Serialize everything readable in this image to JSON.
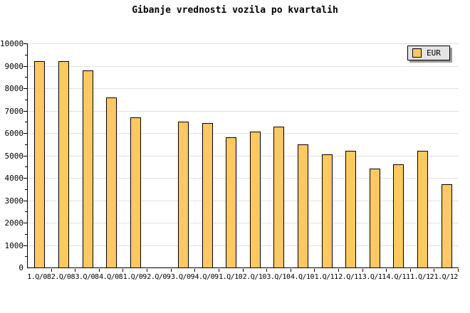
{
  "title": "Gibanje vrednosti vozila po kvartalih",
  "legend": {
    "label": "EUR",
    "swatch_color": "#FFC863"
  },
  "colors": {
    "bar_fill": "#FFC863",
    "bar_border": "#000000",
    "grid": "#E0E0E0",
    "axis": "#000000",
    "background": "#FFFFFF",
    "legend_bg": "#E4E4E4",
    "legend_shadow": "#9A9A9A"
  },
  "chart_data": {
    "type": "bar",
    "title": "Gibanje vrednosti vozila po kvartalih",
    "xlabel": "",
    "ylabel": "",
    "categories": [
      "1.Q/08",
      "2.Q/08",
      "3.Q/08",
      "4.Q/08",
      "1.Q/09",
      "2.Q/09",
      "3.Q/09",
      "4.Q/09",
      "1.Q/10",
      "2.Q/10",
      "3.Q/10",
      "4.Q/10",
      "1.Q/11",
      "2.Q/11",
      "3.Q/11",
      "4.Q/11",
      "1.Q/12",
      "1.Q/12"
    ],
    "series": [
      {
        "name": "EUR",
        "values": [
          9200,
          9200,
          8800,
          7600,
          6700,
          null,
          6500,
          6450,
          5800,
          6050,
          6300,
          5500,
          5050,
          5200,
          4400,
          4600,
          5200,
          3700
        ]
      }
    ],
    "ylim": [
      0,
      10000
    ],
    "ytick_step": 1000,
    "ytick_minor_step": 500,
    "yticks": [
      0,
      1000,
      2000,
      3000,
      4000,
      5000,
      6000,
      7000,
      8000,
      9000,
      10000
    ],
    "grid": "horizontal-major",
    "legend_position": "top-right",
    "bar_color": "#FFC863",
    "note_missing_bar_category": "2.Q/09"
  }
}
